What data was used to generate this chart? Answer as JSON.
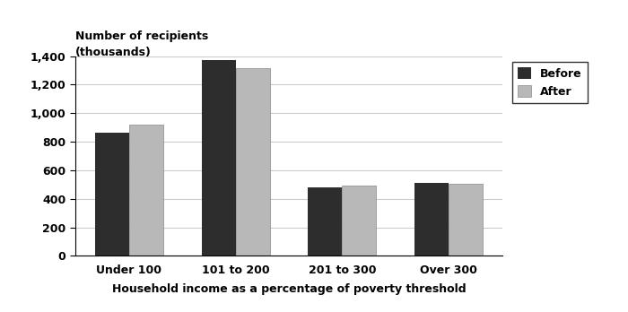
{
  "categories": [
    "Under 100",
    "101 to 200",
    "201 to 300",
    "Over 300"
  ],
  "before_values": [
    865,
    1375,
    480,
    510
  ],
  "after_values": [
    920,
    1315,
    490,
    505
  ],
  "before_color": "#2d2d2d",
  "after_color": "#b8b8b8",
  "ylabel_line1": "Number of recipients",
  "ylabel_line2": "(thousands)",
  "xlabel": "Household income as a percentage of poverty threshold",
  "ylim": [
    0,
    1400
  ],
  "yticks": [
    0,
    200,
    400,
    600,
    800,
    1000,
    1200,
    1400
  ],
  "legend_labels": [
    "Before",
    "After"
  ],
  "bar_width": 0.32,
  "background_color": "#ffffff",
  "grid_color": "#cccccc",
  "font_size": 9,
  "title_font_size": 9
}
